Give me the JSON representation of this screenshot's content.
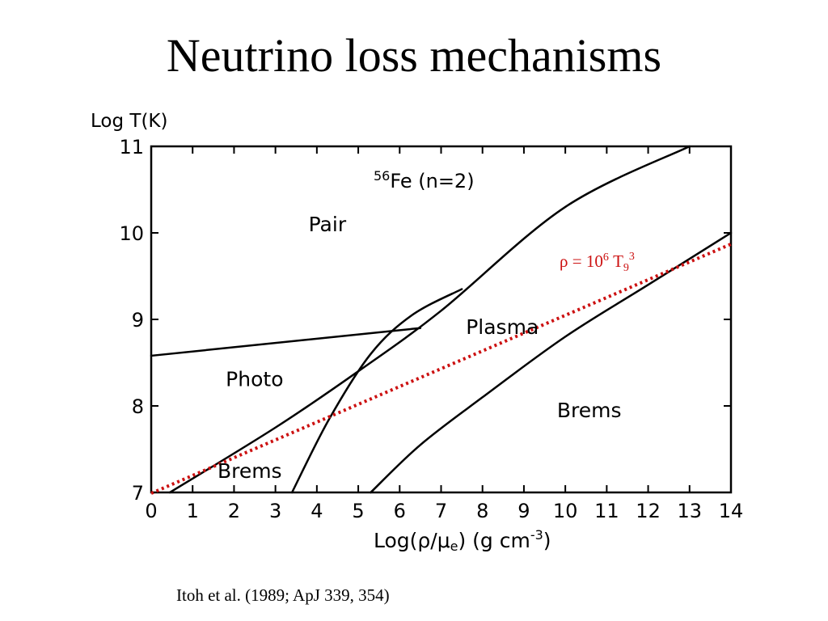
{
  "slide": {
    "title": "Neutrino loss mechanisms",
    "caption": "Itoh et al. (1989; ApJ 339, 354)"
  },
  "chart_data": {
    "type": "line",
    "title": "56Fe (n=2)",
    "title_parts": {
      "superscript": "56",
      "main": "Fe (n=2)"
    },
    "ylabel": "Log T(K)",
    "xlabel_parts": {
      "main": "Log(ρ/μ",
      "sub": "e",
      "mid": ") (g cm",
      "sup": "-3",
      "end": ")"
    },
    "xlim": [
      0,
      14
    ],
    "ylim": [
      7,
      11
    ],
    "xticks": [
      0,
      1,
      2,
      3,
      4,
      5,
      6,
      7,
      8,
      9,
      10,
      11,
      12,
      13,
      14
    ],
    "yticks": [
      7,
      8,
      9,
      10,
      11
    ],
    "grid": false,
    "boundaries": [
      {
        "points": [
          [
            0,
            8.58
          ],
          [
            6.5,
            8.9
          ]
        ]
      },
      {
        "points": [
          [
            0.45,
            7.0
          ],
          [
            3.0,
            7.75
          ],
          [
            5.0,
            8.4
          ],
          [
            7.0,
            9.1
          ],
          [
            10.0,
            10.3
          ],
          [
            13.0,
            11.0
          ]
        ]
      },
      {
        "points": [
          [
            3.4,
            7.0
          ],
          [
            4.3,
            7.85
          ],
          [
            5.3,
            8.6
          ],
          [
            6.3,
            9.05
          ],
          [
            7.5,
            9.35
          ]
        ]
      },
      {
        "points": [
          [
            5.3,
            7.0
          ],
          [
            6.5,
            7.55
          ],
          [
            8.0,
            8.1
          ],
          [
            10.0,
            8.8
          ],
          [
            12.0,
            9.4
          ],
          [
            14.0,
            10.0
          ]
        ]
      }
    ],
    "reference_line": {
      "label_parts": {
        "rho": "ρ = 10",
        "exp": "6",
        "t": " T",
        "sub": "9",
        "sup": "3"
      },
      "color": "#cc1111",
      "style": "dotted",
      "points": [
        [
          0,
          6.99
        ],
        [
          14,
          9.87
        ]
      ]
    },
    "region_labels": [
      {
        "name": "Pair",
        "x": 3.8,
        "y": 10.02
      },
      {
        "name": "Plasma",
        "x": 7.6,
        "y": 8.83
      },
      {
        "name": "Photo",
        "x": 1.8,
        "y": 8.23
      },
      {
        "name": "Brems",
        "x": 1.6,
        "y": 7.17
      },
      {
        "name": "Brems",
        "x": 9.8,
        "y": 7.87
      }
    ]
  }
}
